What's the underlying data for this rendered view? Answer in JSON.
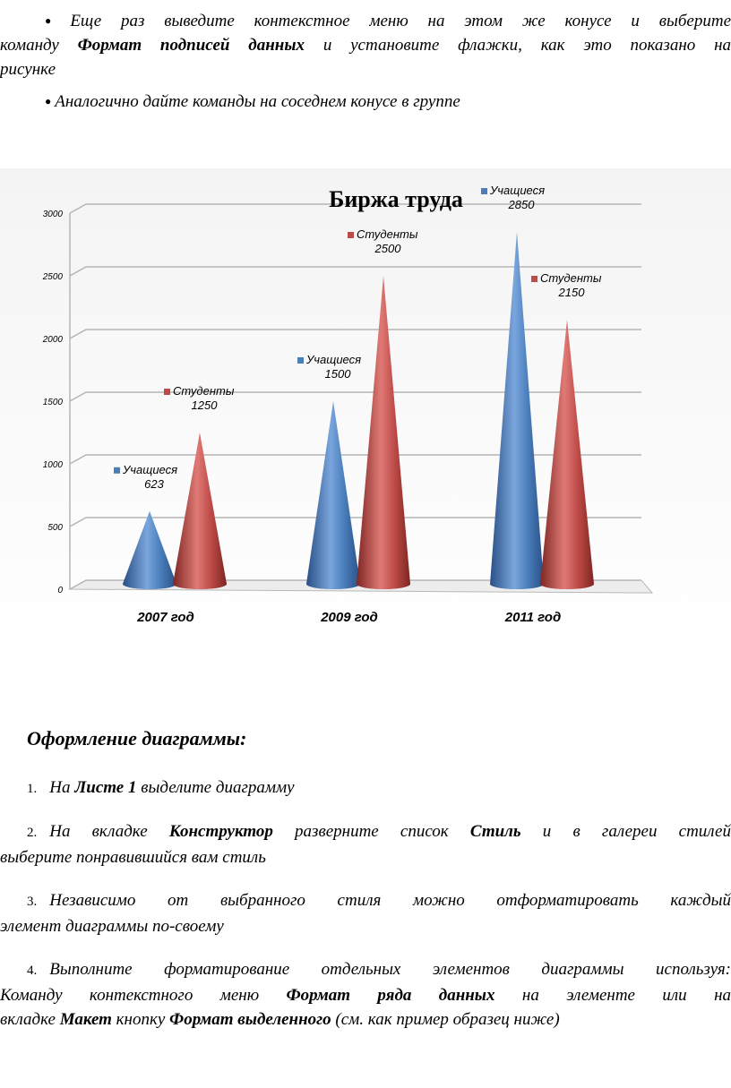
{
  "intro": {
    "bullet1": {
      "line1": "Еще раз выведите контекстное меню на этом же конусе и выберите",
      "line2_pre": "команду",
      "line2_bold": "Формат подписей данных",
      "line2_post": "и установите флажки, как это показано на",
      "line3": "рисунке"
    },
    "bullet2": "Аналогично дайте команды на соседнем конусе в группе"
  },
  "chart_data": {
    "type": "bar",
    "title": "Биржа труда",
    "categories": [
      "2007 год",
      "2009 год",
      "2011 год"
    ],
    "series": [
      {
        "name": "Учащиеся",
        "values": [
          623,
          1500,
          2850
        ],
        "color": "#4a7ebb"
      },
      {
        "name": "Студенты",
        "values": [
          1250,
          2500,
          2150
        ],
        "color": "#be4b48"
      }
    ],
    "yticks": [
      "0",
      "500",
      "1000",
      "1500",
      "2000",
      "2500",
      "3000"
    ],
    "ylim": [
      0,
      3000
    ],
    "grid": true
  },
  "section": {
    "heading": "Оформление диаграммы:",
    "items": [
      {
        "num": "1.",
        "pre": "На",
        "b1": "Листе 1",
        "post": "выделите диаграмму"
      },
      {
        "num": "2.",
        "pre": "На вкладке",
        "b1": "Конструктор",
        "mid": "разверните список",
        "b2": "Стиль",
        "post": "и в галереи стилей",
        "line2": "выберите понравившийся вам стиль"
      },
      {
        "num": "3.",
        "line1": "Независимо от выбранного стиля можно отформатировать каждый",
        "line2": "элемент диаграммы по-своему"
      },
      {
        "num": "4.",
        "line1": "Выполните форматирование отдельных элементов диаграммы используя:",
        "l2_pre": "Команду контекстного меню",
        "l2_b": "Формат ряда данных",
        "l2_post": "на элементе или на",
        "l3_pre": "вкладке",
        "l3_b1": "Макет",
        "l3_mid": "кнопку",
        "l3_b2": "Формат выделенного",
        "l3_post": "(см. как пример образец ниже)"
      }
    ]
  }
}
